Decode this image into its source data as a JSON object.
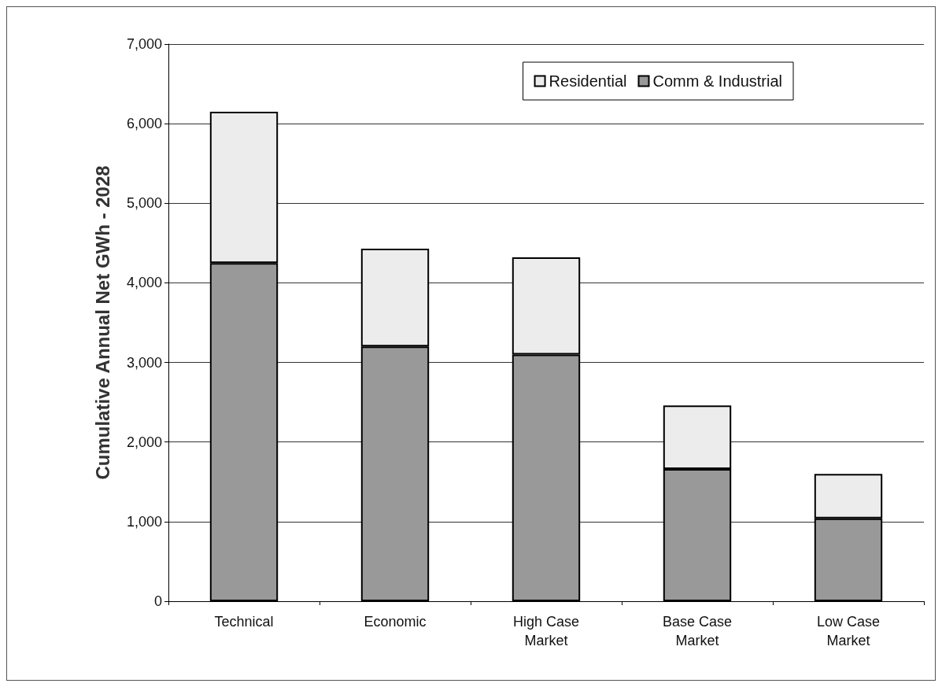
{
  "chart_data": {
    "type": "bar",
    "stacked": true,
    "ylabel": "Cumulative Annual Net GWh - 2028",
    "categories": [
      "Technical",
      "Economic",
      "High Case\nMarket",
      "Base Case\nMarket",
      "Low Case\nMarket"
    ],
    "series": [
      {
        "name": "Comm & Industrial",
        "color": "#999999",
        "values": [
          4250,
          3200,
          3100,
          1660,
          1040
        ]
      },
      {
        "name": "Residential",
        "color": "#ececec",
        "values": [
          1900,
          1230,
          1220,
          800,
          560
        ]
      }
    ],
    "ylim": [
      0,
      7000
    ],
    "yticks": [
      0,
      {
        "value": 1000,
        "label": "1,000"
      },
      {
        "value": 2000,
        "label": "2,000"
      },
      {
        "value": 3000,
        "label": "3,000"
      },
      {
        "value": 4000,
        "label": "4,000"
      },
      {
        "value": 5000,
        "label": "5,000"
      },
      {
        "value": 6000,
        "label": "6,000"
      },
      {
        "value": 7000,
        "label": "7,000"
      }
    ],
    "grid": "y",
    "legend": "top right"
  }
}
